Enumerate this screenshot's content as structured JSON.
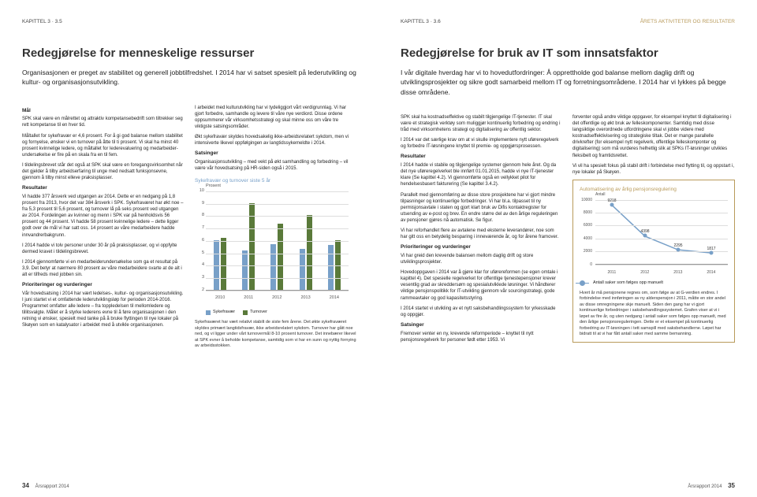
{
  "left": {
    "kapittel": "KAPITTEL 3 · 3.5",
    "title": "Redegjørelse for menneskelige ressurser",
    "intro": "Organisasjonen er preget av stabilitet og generell jobbtilfredshet. I 2014 har vi satset spesielt på lederutvikling og kultur- og organisasjonsutvikling.",
    "col1": {
      "h1": "Mål",
      "p1": "SPK skal være en målrettet og attraktiv kompetanse­bedrift som tiltrekker seg rett kompetanse til en hver tid.",
      "p2": "Måltallet for sykefravær er 4,6 prosent. For å gi god balanse mellom stabilitet og fornyelse, ønsker vi en turnover på åtte til ti prosent. Vi skal ha minst 40 prosent kvinnelige ledere, og måltallet for lederevaluering og medarbeider­undersøkelse er fire på en skala fra en til fem.",
      "p3": "I tildelingsbrevet står det også at SPK skal være en foregangsvirksomhet når det gjelder å tilby arbeidserfaring til unge med nedsatt funksjonsevne, gjennom å tilby minst elleve praksisplasser.",
      "h2": "Resultater",
      "p4": "Vi hadde 377 årsverk ved utgangen av 2014. Dette er en nedgang på 1,8 prosent fra 2013, hvor det var 384 årsverk i SPK. Sykefraværet har økt noe – fra 5,3 prosent til 5,6 prosent, og turnover lå på seks prosent ved utgangen av 2014. Fordelingen av kvinner og menn i SPK var på henholdsvis 56 prosent og 44 prosent. Vi hadde 58 prosent kvinnelige ledere – dette ligger godt over de mål vi har satt oss. 14 prosent av våre medarbeidere hadde innvandrerbakgrunn.",
      "p5": "I 2014 hadde vi tolv personer under 30 år på praksisplasser, og vi oppfylte dermed kravet i tildelingsbrevet.",
      "p6": "I 2014 gjennomførte vi en medarbeiderundersøkelse som ga et resultat på 3,9. Det betyr at nærmere 80 prosent av våre medarbeidere svarte at de alt i alt er tilfreds med jobben sin.",
      "h3": "Prioriteringer og vurderinger",
      "p7": "Vår hovedsatsing i 2014 har vært ledelses-, kultur- og organisasjonsutvikling. I juni startet vi et omfattende lederutviklingsløp for perioden 2014-2016. Programmet omfatter alle ledere – fra toppledelsen til mellomledere og tillitsvalgte. Målet er å styrke lederens evne til å føre organisasjonen i den retning vi ønsker, spesielt med tanke på å bruke flyttingen til nye lokaler på Skøyen som en katalysator i arbeidet med å utvikle organisasjonen."
    },
    "col2": {
      "p1": "I arbeidet med kulturutvikling har vi tydeliggjort vårt verdigrunnlag. Vi har gjort forbedre, samhandle og levere til våre nye verdiord. Disse ordene oppsummerer vår virksomhetsstrategi og skal minne oss om våre tre viktigste satsingsområder.",
      "p2": "Økt sykefravær skyldes hovedsakelig ikke-arbeidsrelatert sykdom, men vi intensiverte likevel oppfølgingen av langtidssykemeldte i 2014.",
      "h1": "Satsinger",
      "p3": "Organisasjonsutvikling – med vekt på økt samhandling og forbedring – vil være vår hovedsatsing på HR-siden også i 2015."
    },
    "chart": {
      "title": "Sykefravær og turnover siste 5 år",
      "yaxis_label": "Prosent",
      "ylim": [
        2,
        10
      ],
      "yticks": [
        2,
        3,
        4,
        5,
        6,
        7,
        8,
        9,
        10
      ],
      "categories": [
        "2010",
        "2011",
        "2012",
        "2013",
        "2014"
      ],
      "series": [
        {
          "name": "Sykefravær",
          "color": "#78a0c8",
          "values": [
            6.0,
            5.2,
            5.7,
            5.3,
            5.6
          ]
        },
        {
          "name": "Turnover",
          "color": "#5a7a3a",
          "values": [
            6.2,
            9.0,
            7.3,
            8.0,
            6.0
          ]
        }
      ],
      "caption": "Sykefraværet har vært relativt stabilt de siste fem årene. Det økte sykefraværet skyldes primært langtidsfravær, ikke arbeidsrelatert sykdom. Turnover har gått noe ned, og vi ligger under vårt turnovermål 8-10 prosent turnover. Det innebærer likevel at SPK evner å beholde kompetanse, samtidig som vi har en sunn og nyttig fornying av arbeidsstokken."
    },
    "footer_page": "34",
    "footer_text": "Årsrapport 2014"
  },
  "right": {
    "kapittel_pre": "KAPITTEL 3 · 3.6",
    "kapittel_suf": "ÅRETS AKTIVITETER OG RESULTATER",
    "title": "Redegjørelse for bruk av IT som innsatsfaktor",
    "intro": "I vår digitale hverdag har vi to hovedutfordringer: Å opprettholde god balanse mellom daglig drift og utviklingsprosjekter og sikre godt samarbeid mellom IT og forretningsområdene. I 2014 har vi lykkes på begge disse områdene.",
    "col1": {
      "p1": "SPK skal ha kostnadseffektive og stabilt tilgjengelige IT-tjenester. IT skal være et strategisk verktøy som muliggjør kontinuerlig forbedring og endring i tråd med virksomhetens strategi og digitalisering av offentlig sektor.",
      "p2": "I 2014 var det særlige krav om at vi skulle implementere nytt uføreregelverk og forbedre IT-løsningene knyttet til premie- og oppgjørsprosessen.",
      "h1": "Resultater",
      "p3": "I 2014 hadde vi stabile og tilgjengelige systemer gjennom hele året. Og da det nye uføreregelverket ble innført 01.01.2015, hadde vi nye IT-tjenester klare (Se kapittel 4.2). Vi gjennomførte også en vellykket pilot for hendelsesbasert fakturering (Se kapittel 3.4.2).",
      "p4": "Parallelt med gjennomføring av disse store prosjektene har vi gjort mindre tilpasninger og kontinuerlige forbedringer. Vi har bl.a. tilpasset til ny permisjonsavtale i staten og gjort klart bruk av Difis kontaktregister for utsending av e-post og brev. En endre større del av den årlige reguleringen av pensjoner gjøres nå automatisk. Se figur.",
      "p5": "Vi har reforhandlet flere av avtalene med eksterne leverandører, noe som har gitt oss en betydelig besparing i inneværende år, og for årene framover.",
      "h2": "Prioriteringer og vurderinger",
      "p6": "Vi har greid den krevende balansen mellom daglig drift og store utviklingsprosjekter.",
      "p7": "Hovedoppgaven i 2014 var å gjøre klar for uførereformen (se egen omtale i kapittel 4). Det spesielle regelverket for offentlige tjenestepensjoner krever vesentlig grad av skreddersøm og spesialutviklede løsninger. Vi håndterer viktige pensjonspolitikk for IT-utvikling gjennom vår sourcingstrategi, gode rammeavtaler og god kapasitetsstyring.",
      "p8": "I 2014 startet vi utvikling av et nytt saksbehandlingssystem for yrkesskade og oppgjør.",
      "h3": "Satsinger",
      "p9": "Fremover venter en ny, krevende reformperiode – knyttet til nytt pensjonsregelverk for personer født etter 1953. Vi"
    },
    "col2": {
      "p1": "forventer også andre viktige oppgaver, for eksempel knyttet til digitalisering i det offentlige og økt bruk av felleskomponenter. Samtidig med disse langsiktige overordnede utfordringene skal vi jobbe videre med kostnadseffektivisering og strategiske tiltak. Det er mange parallelle drivkrefter (for eksempel nytt regelverk, offentlige felleskomponter og digitalisering) som må vurderes helhetlig slik at SPKs IT-løsninger utvikles fleksibelt og framtidsrettet.",
      "p2": "Vi vil ha spesielt fokus på stabil drift i forbindelse med flytting til, og oppstart i, nye lokaler på Skøyen."
    },
    "linechart": {
      "title": "Automatisering av årlig pensjonsregulering",
      "yaxis_label": "Antall",
      "ylim": [
        0,
        10000
      ],
      "yticks": [
        0,
        2000,
        4000,
        6000,
        8000,
        10000
      ],
      "categories": [
        "2011",
        "2012",
        "2013",
        "2014"
      ],
      "values": [
        9218,
        4398,
        2295,
        1817
      ],
      "color": "#78a0c8",
      "legend": "Antall saker som følges opp manuelt",
      "caption": "Hvert år må pensjonene regnes om, som følge av at G-verdien endres. I forbindelse med innføringen av ny alderspensjon i 2011, måtte en stor andel av disse omregningene skje manuelt. Siden den gang har vi gjort kontinuerlige forbedringer i saksbehandlingssystemet. Grafen viser at vi i løpet av fire år, og uten nedgang i antall saker som følges opp manuelt, med den årlige pensjonsreguleringen. Dette er et eksempel på kontinuerlig forbedring av IT-løsningen i tett samspill med saksbehandlerne. Løpet har bidratt til at vi har fått antall saker med samme bemanning."
    },
    "footer_text": "Årsrapport 2014",
    "footer_page": "35"
  }
}
